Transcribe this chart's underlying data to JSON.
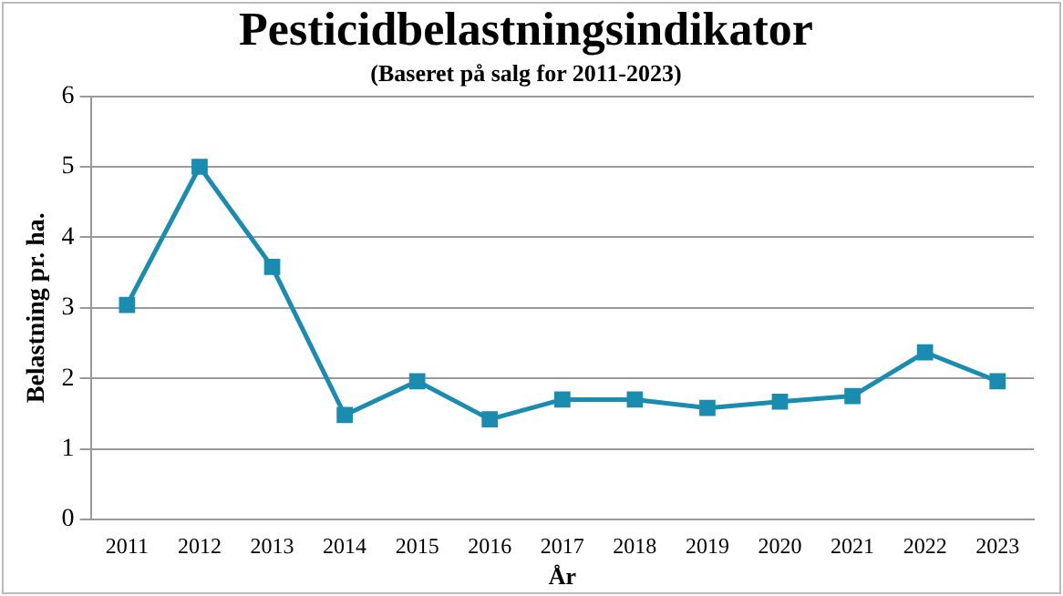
{
  "chart_data": {
    "type": "line",
    "title": "Pesticidbelastningsindikator",
    "subtitle": "(Baseret på salg for 2011-2023)",
    "xlabel": "År",
    "ylabel": "Belastning pr. ha.",
    "categories": [
      "2011",
      "2012",
      "2013",
      "2014",
      "2015",
      "2016",
      "2017",
      "2018",
      "2019",
      "2020",
      "2021",
      "2022",
      "2023"
    ],
    "series": [
      {
        "color": "#1a8cb0",
        "values": [
          3.04,
          5.0,
          3.58,
          1.48,
          1.96,
          1.42,
          1.7,
          1.7,
          1.58,
          1.67,
          1.75,
          2.37,
          1.96
        ]
      }
    ],
    "ylim": [
      0,
      6
    ],
    "yticks": [
      0,
      1,
      2,
      3,
      4,
      5,
      6
    ],
    "grid": "y",
    "legend": false,
    "marker": "square",
    "line_style": "solid"
  }
}
